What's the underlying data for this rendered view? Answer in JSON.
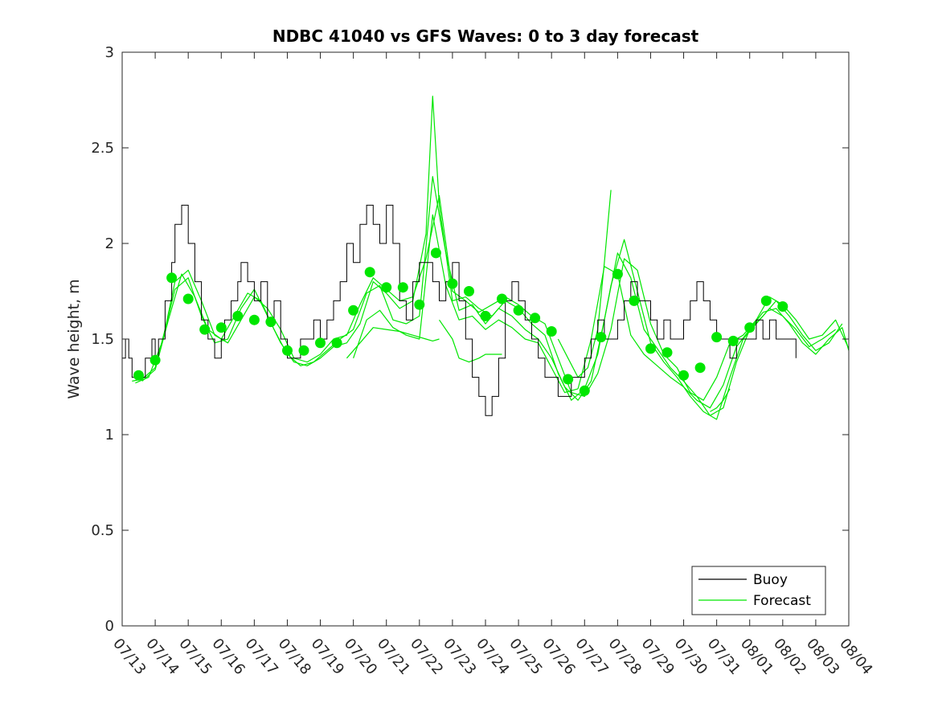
{
  "chart_data": {
    "type": "line",
    "title": "NDBC 41040 vs GFS Waves: 0 to 3 day forecast",
    "ylabel": "Wave height, m",
    "xlabel": "",
    "xlim": [
      "07/13",
      "08/04"
    ],
    "ylim": [
      0,
      3
    ],
    "yticks": [
      0,
      0.5,
      1,
      1.5,
      2,
      2.5,
      3
    ],
    "ytick_labels": [
      "0",
      "0.5",
      "1",
      "1.5",
      "2",
      "2.5",
      "3"
    ],
    "xtick_labels": [
      "07/13",
      "07/14",
      "07/15",
      "07/16",
      "07/17",
      "07/18",
      "07/19",
      "07/20",
      "07/21",
      "07/22",
      "07/23",
      "07/24",
      "07/25",
      "07/26",
      "07/27",
      "07/28",
      "07/29",
      "07/30",
      "07/31",
      "08/01",
      "08/02",
      "08/03",
      "08/04"
    ],
    "grid": false,
    "legend": {
      "position": "bottom-right",
      "entries": [
        "Buoy",
        "Forecast"
      ]
    },
    "colors": {
      "buoy": "#000000",
      "forecast": "#00e600"
    },
    "series": [
      {
        "name": "Buoy",
        "x": [
          0,
          0.1,
          0.2,
          0.3,
          0.5,
          0.7,
          0.9,
          1.0,
          1.1,
          1.3,
          1.5,
          1.6,
          1.8,
          2.0,
          2.2,
          2.4,
          2.6,
          2.8,
          3.0,
          3.1,
          3.3,
          3.5,
          3.6,
          3.8,
          4.0,
          4.2,
          4.4,
          4.6,
          4.8,
          5.0,
          5.2,
          5.4,
          5.6,
          5.8,
          6.0,
          6.2,
          6.4,
          6.6,
          6.8,
          7.0,
          7.2,
          7.4,
          7.6,
          7.8,
          8.0,
          8.2,
          8.4,
          8.6,
          8.8,
          9.0,
          9.2,
          9.4,
          9.6,
          9.8,
          10.0,
          10.2,
          10.4,
          10.6,
          10.8,
          11.0,
          11.2,
          11.4,
          11.6,
          11.8,
          12.0,
          12.2,
          12.4,
          12.6,
          12.8,
          13.0,
          13.2,
          13.4,
          13.6,
          13.8,
          14.0,
          14.2,
          14.4,
          14.6,
          14.8,
          15.0,
          15.2,
          15.4,
          15.6,
          15.8,
          16.0,
          16.2,
          16.4,
          16.6,
          16.8,
          17.0,
          17.2,
          17.4,
          17.6,
          17.8,
          18.0,
          18.2,
          18.4,
          18.6,
          18.8,
          19.0,
          19.2,
          19.4,
          19.6,
          19.8,
          20.0,
          20.2,
          20.4
        ],
        "y": [
          1.4,
          1.5,
          1.4,
          1.3,
          1.3,
          1.4,
          1.5,
          1.4,
          1.5,
          1.7,
          1.9,
          2.1,
          2.2,
          2.0,
          1.8,
          1.6,
          1.5,
          1.4,
          1.5,
          1.6,
          1.7,
          1.8,
          1.9,
          1.8,
          1.7,
          1.8,
          1.6,
          1.7,
          1.5,
          1.4,
          1.4,
          1.5,
          1.5,
          1.6,
          1.5,
          1.6,
          1.7,
          1.8,
          2.0,
          1.9,
          2.1,
          2.2,
          2.1,
          2.0,
          2.2,
          2.0,
          1.7,
          1.6,
          1.8,
          1.9,
          1.9,
          1.8,
          1.7,
          1.8,
          1.9,
          1.7,
          1.5,
          1.3,
          1.2,
          1.1,
          1.2,
          1.4,
          1.7,
          1.8,
          1.7,
          1.6,
          1.5,
          1.4,
          1.3,
          1.3,
          1.2,
          1.2,
          1.3,
          1.3,
          1.4,
          1.5,
          1.6,
          1.5,
          1.5,
          1.6,
          1.7,
          1.8,
          1.7,
          1.7,
          1.6,
          1.5,
          1.6,
          1.5,
          1.5,
          1.6,
          1.7,
          1.8,
          1.7,
          1.6,
          1.5,
          1.5,
          1.4,
          1.5,
          1.5,
          1.5,
          1.6,
          1.5,
          1.6,
          1.5,
          1.5,
          1.5,
          1.4
        ]
      },
      {
        "name": "Forecast",
        "x": [
          0.5,
          1.0,
          1.5,
          2.0,
          2.5,
          3.0,
          3.5,
          4.0,
          4.5,
          5.0,
          5.5,
          6.0,
          6.5,
          7.0,
          7.5,
          8.0,
          8.5,
          9.0,
          9.5,
          10.0,
          10.5,
          11.0,
          11.5,
          12.0,
          12.5,
          13.0,
          13.5,
          14.0,
          14.5,
          15.0,
          15.5,
          16.0,
          16.5,
          17.0,
          17.5,
          18.0,
          18.5,
          19.0,
          19.5,
          20.0
        ],
        "y": [
          1.31,
          1.39,
          1.82,
          1.71,
          1.55,
          1.56,
          1.62,
          1.6,
          1.59,
          1.44,
          1.44,
          1.48,
          1.48,
          1.65,
          1.85,
          1.77,
          1.77,
          1.68,
          1.95,
          1.79,
          1.75,
          1.62,
          1.71,
          1.65,
          1.61,
          1.54,
          1.29,
          1.23,
          1.51,
          1.84,
          1.7,
          1.45,
          1.43,
          1.31,
          1.35,
          1.51,
          1.49,
          1.56,
          1.7,
          1.67
        ]
      },
      {
        "name": "",
        "x": [
          0.3,
          0.6,
          1.0,
          1.3,
          1.6,
          2.0,
          2.4,
          2.8,
          3.2,
          3.6,
          4.0,
          4.4,
          4.8,
          5.2,
          5.6,
          6.0,
          6.4,
          6.8,
          7.2,
          7.6,
          8.0,
          8.4,
          8.8,
          9.2,
          9.6,
          10.0,
          10.4,
          10.8,
          11.2,
          11.6,
          12.0,
          12.4,
          12.8,
          13.2,
          13.6,
          14.0,
          14.4,
          14.8,
          15.2,
          15.6,
          16.0,
          16.4,
          16.8,
          17.2,
          17.6,
          18.0,
          18.4,
          18.8,
          19.2,
          19.6,
          20.0,
          20.4,
          20.8,
          21.2,
          21.6,
          22.0
        ],
        "y": [
          1.28,
          1.29,
          1.35,
          1.55,
          1.8,
          1.86,
          1.7,
          1.52,
          1.48,
          1.6,
          1.72,
          1.66,
          1.55,
          1.4,
          1.38,
          1.42,
          1.5,
          1.52,
          1.68,
          1.82,
          1.76,
          1.7,
          1.72,
          1.92,
          2.25,
          1.75,
          1.7,
          1.64,
          1.68,
          1.72,
          1.68,
          1.62,
          1.58,
          1.4,
          1.22,
          1.2,
          1.32,
          1.55,
          1.92,
          1.86,
          1.58,
          1.42,
          1.35,
          1.22,
          1.18,
          1.3,
          1.48,
          1.52,
          1.6,
          1.72,
          1.68,
          1.6,
          1.5,
          1.52,
          1.6,
          1.45
        ]
      },
      {
        "name": "",
        "x": [
          0.4,
          0.8,
          1.2,
          1.6,
          2.0,
          2.4,
          2.8,
          3.2,
          3.6,
          4.0,
          4.4,
          4.8,
          5.2,
          5.6,
          6.0,
          6.4,
          6.8,
          7.2,
          7.6,
          8.0,
          8.4,
          8.8,
          9.2,
          9.4,
          9.6,
          10.0,
          10.4,
          10.8,
          11.2,
          11.6,
          12.0,
          12.4,
          12.8,
          13.2,
          13.6,
          14.0,
          14.4,
          14.8,
          15.2,
          15.6,
          16.0,
          16.4,
          16.8,
          17.2,
          17.6,
          18.0,
          18.4,
          18.8,
          19.2,
          19.6,
          20.0,
          20.4,
          20.8,
          21.2,
          21.6
        ],
        "y": [
          1.27,
          1.3,
          1.48,
          1.76,
          1.82,
          1.62,
          1.48,
          1.5,
          1.66,
          1.76,
          1.62,
          1.48,
          1.38,
          1.36,
          1.4,
          1.46,
          1.48,
          1.58,
          1.8,
          1.74,
          1.66,
          1.7,
          2.05,
          2.77,
          2.2,
          1.7,
          1.72,
          1.66,
          1.62,
          1.7,
          1.66,
          1.58,
          1.52,
          1.32,
          1.18,
          1.24,
          1.42,
          1.78,
          2.02,
          1.75,
          1.48,
          1.38,
          1.3,
          1.2,
          1.12,
          1.08,
          1.3,
          1.5,
          1.58,
          1.66,
          1.62,
          1.55,
          1.46,
          1.5,
          1.55
        ]
      },
      {
        "name": "",
        "x": [
          0.6,
          1.0,
          1.4,
          1.8,
          2.2,
          2.6,
          3.0,
          3.4,
          3.8,
          4.2,
          4.6,
          5.0,
          5.4,
          5.8,
          6.2,
          6.6,
          7.0,
          7.4,
          7.8,
          8.2,
          8.6,
          9.0,
          9.4,
          9.8,
          10.2,
          10.6,
          11.0,
          11.4,
          11.8,
          12.2,
          12.6,
          13.0,
          13.4,
          13.8,
          14.2,
          14.6,
          15.0,
          15.4,
          15.8,
          16.2,
          16.6,
          17.0,
          17.4,
          17.8,
          18.2,
          18.6,
          19.0,
          19.4,
          19.8,
          20.2,
          20.6,
          21.0,
          21.4,
          21.8
        ],
        "y": [
          1.28,
          1.34,
          1.6,
          1.84,
          1.72,
          1.55,
          1.5,
          1.62,
          1.74,
          1.7,
          1.55,
          1.42,
          1.36,
          1.38,
          1.44,
          1.5,
          1.55,
          1.74,
          1.78,
          1.6,
          1.58,
          1.62,
          2.35,
          1.95,
          1.65,
          1.68,
          1.58,
          1.66,
          1.62,
          1.55,
          1.5,
          1.4,
          1.25,
          1.18,
          1.28,
          1.6,
          1.95,
          1.82,
          1.55,
          1.45,
          1.35,
          1.28,
          1.2,
          1.1,
          1.14,
          1.38,
          1.55,
          1.62,
          1.7,
          1.62,
          1.52,
          1.44,
          1.48,
          1.58
        ]
      },
      {
        "name": "",
        "x": [
          7.0,
          7.4,
          7.8,
          8.2,
          8.6,
          9.0,
          9.4,
          9.8,
          10.2,
          10.6,
          11.0,
          11.4,
          11.8,
          12.2,
          12.6,
          13.0,
          13.4,
          13.8,
          14.2,
          14.6,
          15.0,
          15.4,
          15.8,
          16.2,
          16.6,
          17.0,
          17.4,
          17.8,
          18.2,
          18.6,
          19.0,
          19.4,
          19.8,
          20.2,
          20.6,
          21.0,
          21.4,
          21.8,
          22.0
        ],
        "y": [
          1.4,
          1.6,
          1.65,
          1.56,
          1.52,
          1.5,
          2.15,
          1.78,
          1.6,
          1.62,
          1.55,
          1.6,
          1.56,
          1.5,
          1.48,
          1.35,
          1.22,
          1.24,
          1.5,
          1.88,
          1.84,
          1.52,
          1.42,
          1.36,
          1.3,
          1.25,
          1.18,
          1.14,
          1.26,
          1.46,
          1.55,
          1.64,
          1.66,
          1.58,
          1.48,
          1.42,
          1.5,
          1.56,
          1.44
        ]
      },
      {
        "name": "",
        "x": [
          6.8,
          7.2,
          7.6,
          8.0,
          8.4,
          8.8,
          9.2,
          9.4,
          9.6
        ],
        "y": [
          1.4,
          1.48,
          1.56,
          1.55,
          1.54,
          1.52,
          1.5,
          1.49,
          1.5
        ]
      },
      {
        "name": "",
        "x": [
          9.6,
          10.0,
          10.2,
          10.5,
          10.8,
          11.0,
          11.2,
          11.5
        ],
        "y": [
          1.6,
          1.5,
          1.4,
          1.38,
          1.4,
          1.42,
          1.42,
          1.42
        ]
      },
      {
        "name": "",
        "x": [
          13.2,
          13.5,
          13.8,
          14.1,
          14.4,
          14.6,
          14.8
        ],
        "y": [
          1.5,
          1.4,
          1.3,
          1.35,
          1.55,
          1.9,
          2.28
        ]
      },
      {
        "name": "",
        "x": [
          17.8,
          18.0,
          18.2,
          18.4
        ],
        "y": [
          1.12,
          1.14,
          1.18,
          1.24
        ]
      }
    ]
  }
}
